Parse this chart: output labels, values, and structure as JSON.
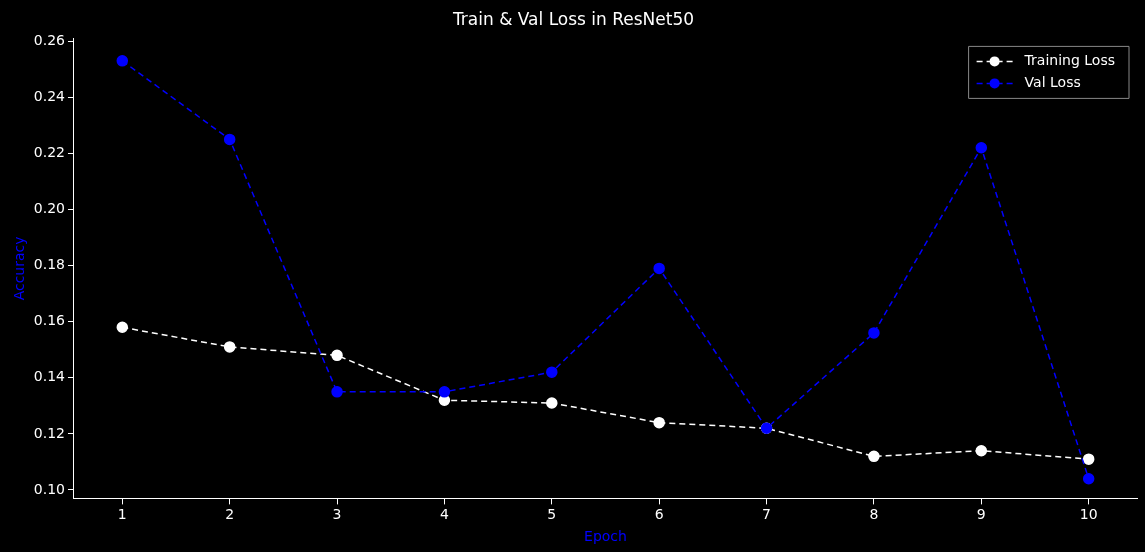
{
  "chart_data": {
    "type": "line",
    "title": "Train & Val Loss in ResNet50",
    "xlabel": "Epoch",
    "ylabel": "Accuracy",
    "x": [
      1,
      2,
      3,
      4,
      5,
      6,
      7,
      8,
      9,
      10
    ],
    "series": [
      {
        "name": "Training Loss",
        "color": "#ffffff",
        "values": [
          0.158,
          0.151,
          0.148,
          0.132,
          0.131,
          0.124,
          0.122,
          0.112,
          0.114,
          0.111
        ]
      },
      {
        "name": "Val Loss",
        "color": "#0000ff",
        "values": [
          0.253,
          0.225,
          0.135,
          0.135,
          0.142,
          0.179,
          0.122,
          0.156,
          0.222,
          0.104
        ]
      }
    ],
    "xlim": [
      0.55,
      10.45
    ],
    "xticks": [
      1,
      2,
      3,
      4,
      5,
      6,
      7,
      8,
      9,
      10
    ],
    "ylim": [
      0.097,
      0.261
    ],
    "yticks": [
      {
        "value": 0.1,
        "label": "0.10"
      },
      {
        "value": 0.12,
        "label": "0.12"
      },
      {
        "value": 0.14,
        "label": "0.14"
      },
      {
        "value": 0.16,
        "label": "0.16"
      },
      {
        "value": 0.18,
        "label": "0.18"
      },
      {
        "value": 0.2,
        "label": "0.20"
      },
      {
        "value": 0.22,
        "label": "0.22"
      },
      {
        "value": 0.24,
        "label": "0.24"
      },
      {
        "value": 0.26,
        "label": "0.26"
      }
    ],
    "grid": false,
    "legend": "top right",
    "marker": "circle",
    "line_style": "dashed"
  }
}
